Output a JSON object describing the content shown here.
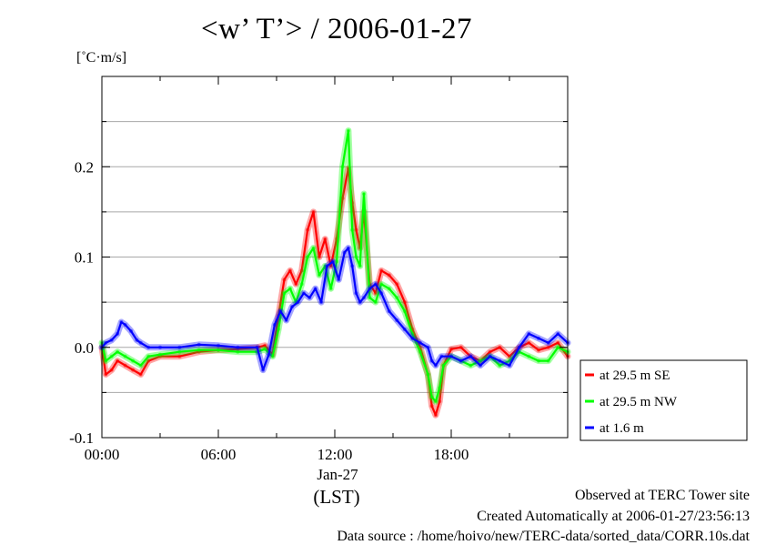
{
  "page": {
    "title": "<w’ T’> / 2006-01-27",
    "unit": "[˚C·m/s]",
    "x_date_label": "Jan-27",
    "x_unit_label": "(LST)",
    "footer": {
      "observed": "Observed at TERC Tower site",
      "created": "Created Automatically at 2006-01-27/23:56:13",
      "source": "Data source : /home/hoivo/new/TERC-data/sorted_data/CORR.10s.dat"
    }
  },
  "chart_data": {
    "type": "line",
    "title": "<w’ T’> / 2006-01-27",
    "ylabel": "[˚C·m/s]",
    "xlabel": "(LST)",
    "xlim": [
      0,
      24
    ],
    "ylim": [
      -0.1,
      0.3
    ],
    "x_ticks": [
      0,
      6,
      12,
      18
    ],
    "x_tick_labels": [
      "00:00",
      "06:00",
      "12:00",
      "18:00"
    ],
    "x_date_label": "Jan-27",
    "y_ticks": [
      -0.1,
      0.0,
      0.1,
      0.2
    ],
    "y_tick_labels": [
      "-0.1",
      "0.0",
      "0.1",
      "0.2"
    ],
    "grid": true,
    "legend_position": "right-bottom, outside plot",
    "series": [
      {
        "name": "at 29.5 m SE",
        "color": "#ff0000",
        "x": [
          0,
          0.2,
          0.5,
          0.8,
          1.2,
          1.6,
          2.0,
          2.4,
          3.0,
          4.0,
          5.0,
          6.0,
          7.0,
          8.0,
          8.4,
          8.8,
          9.1,
          9.4,
          9.7,
          10.0,
          10.3,
          10.6,
          10.9,
          11.2,
          11.5,
          11.8,
          12.1,
          12.4,
          12.7,
          12.9,
          13.1,
          13.3,
          13.5,
          13.8,
          14.1,
          14.4,
          14.8,
          15.2,
          15.6,
          16.0,
          16.4,
          16.8,
          17.0,
          17.2,
          17.4,
          17.6,
          18.0,
          18.5,
          19.0,
          19.5,
          20.0,
          20.5,
          21.0,
          21.5,
          22.0,
          22.5,
          23.0,
          23.5,
          24.0
        ],
        "values": [
          0.0,
          -0.03,
          -0.025,
          -0.015,
          -0.02,
          -0.025,
          -0.03,
          -0.015,
          -0.01,
          -0.01,
          -0.005,
          -0.003,
          -0.002,
          0.0,
          0.002,
          -0.008,
          0.035,
          0.075,
          0.085,
          0.07,
          0.085,
          0.13,
          0.15,
          0.1,
          0.12,
          0.09,
          0.12,
          0.165,
          0.198,
          0.16,
          0.13,
          0.11,
          0.15,
          0.07,
          0.06,
          0.085,
          0.08,
          0.07,
          0.05,
          0.02,
          0.0,
          -0.03,
          -0.065,
          -0.075,
          -0.06,
          -0.02,
          -0.002,
          0.0,
          -0.01,
          -0.015,
          -0.005,
          0.0,
          -0.01,
          0.0,
          0.005,
          -0.003,
          0.0,
          0.005,
          -0.01
        ]
      },
      {
        "name": "at 29.5 m NW",
        "color": "#00ff00",
        "x": [
          0,
          0.2,
          0.5,
          0.8,
          1.2,
          1.6,
          2.0,
          2.4,
          3.0,
          4.0,
          5.0,
          6.0,
          7.0,
          8.0,
          8.4,
          8.8,
          9.1,
          9.4,
          9.7,
          10.0,
          10.3,
          10.6,
          10.9,
          11.2,
          11.5,
          11.8,
          12.1,
          12.4,
          12.7,
          12.9,
          13.1,
          13.3,
          13.5,
          13.8,
          14.1,
          14.4,
          14.8,
          15.2,
          15.6,
          16.0,
          16.4,
          16.8,
          17.0,
          17.2,
          17.4,
          17.6,
          18.0,
          18.5,
          19.0,
          19.5,
          20.0,
          20.5,
          21.0,
          21.5,
          22.0,
          22.5,
          23.0,
          23.5,
          24.0
        ],
        "values": [
          0.005,
          -0.015,
          -0.01,
          -0.005,
          -0.01,
          -0.015,
          -0.02,
          -0.01,
          -0.008,
          -0.005,
          -0.003,
          -0.003,
          -0.005,
          -0.005,
          -0.002,
          -0.01,
          0.02,
          0.06,
          0.065,
          0.05,
          0.07,
          0.1,
          0.11,
          0.08,
          0.09,
          0.065,
          0.095,
          0.2,
          0.24,
          0.13,
          0.1,
          0.09,
          0.17,
          0.055,
          0.05,
          0.07,
          0.065,
          0.055,
          0.04,
          0.015,
          -0.005,
          -0.03,
          -0.055,
          -0.06,
          -0.045,
          -0.02,
          -0.01,
          -0.015,
          -0.02,
          -0.015,
          -0.01,
          -0.02,
          -0.015,
          -0.005,
          -0.01,
          -0.015,
          -0.015,
          0.0,
          -0.005
        ]
      },
      {
        "name": "at 1.6 m",
        "color": "#0000ff",
        "x": [
          0,
          0.2,
          0.5,
          0.8,
          1.0,
          1.2,
          1.5,
          1.8,
          2.0,
          2.4,
          3.0,
          4.0,
          5.0,
          6.0,
          7.0,
          8.0,
          8.3,
          8.6,
          8.9,
          9.2,
          9.5,
          9.8,
          10.1,
          10.4,
          10.7,
          11.0,
          11.3,
          11.6,
          11.9,
          12.2,
          12.5,
          12.7,
          12.9,
          13.1,
          13.3,
          13.5,
          13.8,
          14.1,
          14.4,
          14.8,
          15.2,
          15.6,
          16.0,
          16.4,
          16.8,
          17.0,
          17.2,
          17.5,
          18.0,
          18.5,
          19.0,
          19.5,
          20.0,
          20.5,
          21.0,
          21.5,
          22.0,
          22.5,
          23.0,
          23.5,
          24.0
        ],
        "values": [
          0.0,
          0.005,
          0.008,
          0.015,
          0.028,
          0.025,
          0.018,
          0.008,
          0.005,
          0.0,
          0.0,
          0.0,
          0.003,
          0.002,
          0.0,
          0.0,
          -0.025,
          -0.008,
          0.025,
          0.04,
          0.03,
          0.045,
          0.05,
          0.06,
          0.055,
          0.065,
          0.05,
          0.09,
          0.095,
          0.075,
          0.105,
          0.11,
          0.09,
          0.06,
          0.05,
          0.055,
          0.065,
          0.07,
          0.06,
          0.04,
          0.03,
          0.02,
          0.01,
          0.005,
          0.0,
          -0.015,
          -0.02,
          -0.01,
          -0.01,
          -0.015,
          -0.01,
          -0.02,
          -0.01,
          -0.015,
          -0.02,
          0.0,
          0.015,
          0.01,
          0.005,
          0.015,
          0.005
        ]
      }
    ]
  }
}
